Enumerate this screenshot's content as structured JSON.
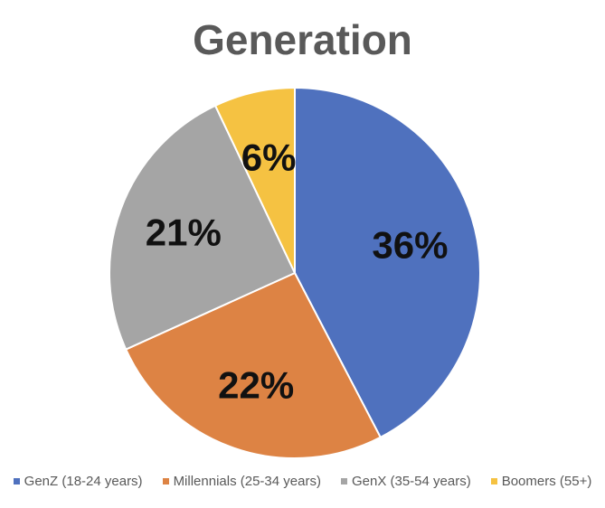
{
  "chart_data": {
    "type": "pie",
    "title": "Generation",
    "categories": [
      "GenZ (18-24 years)",
      "Millennials (25-34 years)",
      "GenX (35-54 years)",
      "Boomers (55+)"
    ],
    "values": [
      36,
      22,
      21,
      6
    ],
    "data_labels": [
      "36%",
      "22%",
      "21%",
      "6%"
    ],
    "colors": [
      "#4F71BE",
      "#DD8344",
      "#A5A5A5",
      "#F5C242"
    ],
    "legend_position": "bottom",
    "start_angle": "12 o'clock",
    "direction": "clockwise"
  }
}
